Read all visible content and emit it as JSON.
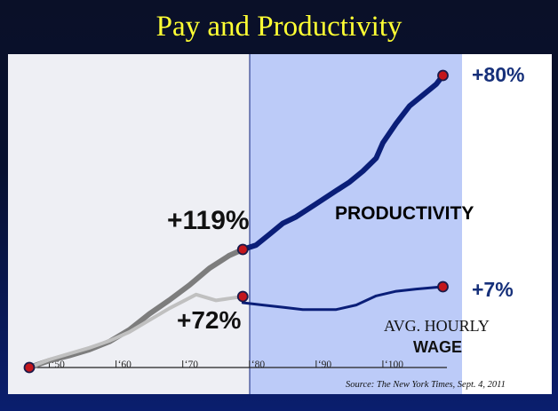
{
  "title": "Pay and Productivity",
  "source": "Source: The New York Times, Sept. 4, 2011",
  "chart_data": {
    "type": "line",
    "x_ticks": [
      "‘50",
      "‘60",
      "‘70",
      "‘80",
      "‘90",
      "‘100"
    ],
    "x_tick_values": [
      1950,
      1960,
      1970,
      1980,
      1990,
      2000
    ],
    "xlim": [
      1947,
      2010
    ],
    "annotations": {
      "productivity_pre": "+119%",
      "wage_pre": "+72%",
      "productivity_post": "+80%",
      "wage_post": "+7%"
    },
    "series": [
      {
        "name": "PRODUCTIVITY",
        "color": "#0a1e78",
        "x": [
          1979,
          1981,
          1983,
          1985,
          1987,
          1990,
          1993,
          1995,
          1997,
          1999,
          2000,
          2002,
          2004,
          2006,
          2008,
          2009
        ],
        "y": [
          0,
          2,
          7,
          12,
          15,
          21,
          27,
          31,
          36,
          42,
          49,
          58,
          66,
          71,
          76,
          80
        ]
      },
      {
        "name": "",
        "color": "#7d7d7d",
        "x": [
          1947,
          1950,
          1953,
          1956,
          1959,
          1962,
          1965,
          1968,
          1971,
          1974,
          1977,
          1979
        ],
        "y": [
          0,
          7,
          12,
          18,
          26,
          38,
          54,
          68,
          83,
          100,
          113,
          119
        ]
      },
      {
        "name": "AVG. HOURLY WAGE",
        "color": "#0a1e78",
        "x": [
          1979,
          1982,
          1985,
          1988,
          1990,
          1993,
          1996,
          1999,
          2002,
          2005,
          2009
        ],
        "y": [
          0,
          -1,
          -2,
          -3,
          -3,
          -3,
          -1,
          3,
          5,
          6,
          7
        ]
      },
      {
        "name": "",
        "color": "#c0c0c0",
        "x": [
          1947,
          1950,
          1953,
          1956,
          1959,
          1962,
          1965,
          1968,
          1972,
          1975,
          1977,
          1979
        ],
        "y": [
          0,
          8,
          14,
          20,
          27,
          36,
          48,
          60,
          74,
          68,
          70,
          72
        ]
      }
    ],
    "labels": {
      "productivity": "PRODUCTIVITY",
      "wage_line1": "AVG. HOURLY",
      "wage_line2": "WAGE"
    }
  }
}
